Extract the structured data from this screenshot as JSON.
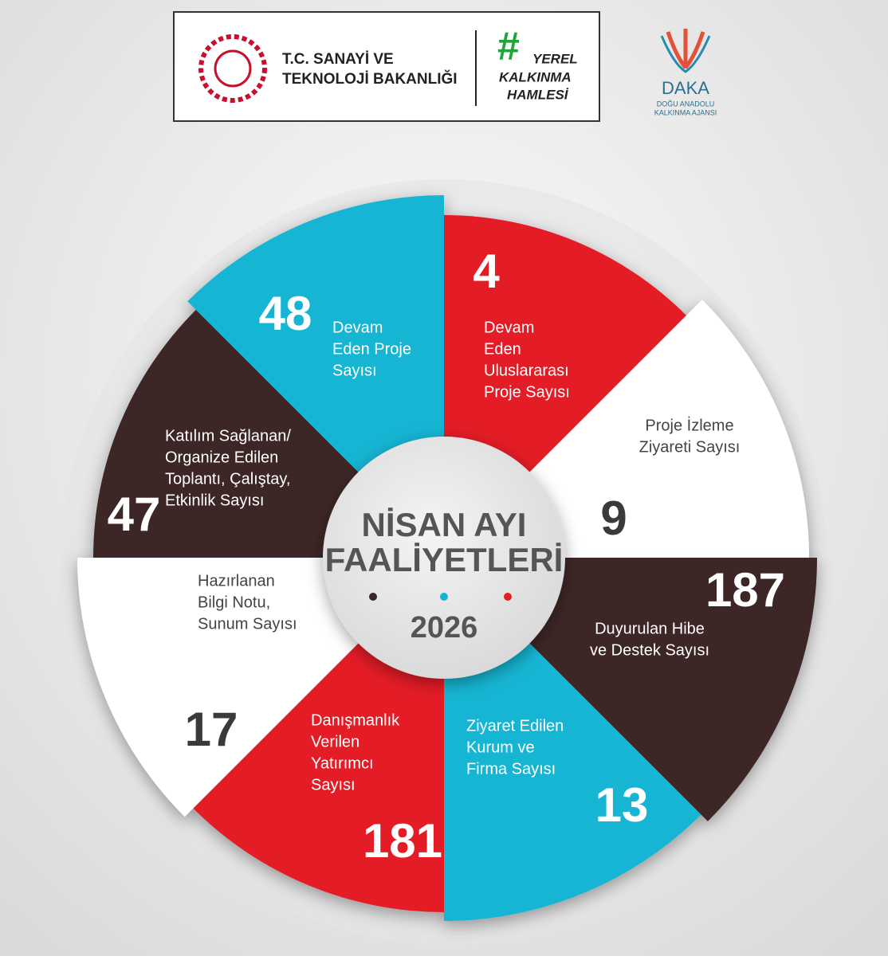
{
  "header": {
    "ministry": [
      "T.C. SANAYİ VE",
      "TEKNOLOJİ BAKANLIĞI"
    ],
    "campaign": [
      "#",
      "YEREL",
      "KALKINMA",
      "HAMLESİ"
    ],
    "agency": {
      "name": "DAKA",
      "full": [
        "DOĞU ANADOLU",
        "KALKINMA AJANSI"
      ]
    }
  },
  "center": {
    "title": [
      "NİSAN AYI",
      "FAALİYETLERİ"
    ],
    "year": "2026"
  },
  "segments": [
    {
      "value": "4",
      "label": [
        "Devam",
        "Eden",
        "Uluslararası",
        "Proje Sayısı"
      ]
    },
    {
      "value": "9",
      "label": [
        "Proje İzleme",
        "Ziyareti Sayısı"
      ]
    },
    {
      "value": "187",
      "label": [
        "Duyurulan Hibe",
        "ve Destek Sayısı"
      ]
    },
    {
      "value": "13",
      "label": [
        "Ziyaret Edilen",
        "Kurum ve",
        "Firma Sayısı"
      ]
    },
    {
      "value": "181",
      "label": [
        "Danışmanlık",
        "Verilen",
        "Yatırımcı",
        "Sayısı"
      ]
    },
    {
      "value": "17",
      "label": [
        "Hazırlanan",
        "Bilgi Notu,",
        "Sunum Sayısı"
      ]
    },
    {
      "value": "47",
      "label": [
        "Katılım Sağlanan/",
        "Organize Edilen",
        "Toplantı, Çalıştay,",
        "Etkinlik Sayısı"
      ]
    },
    {
      "value": "48",
      "label": [
        "Devam",
        "Eden Proje",
        "Sayısı"
      ]
    }
  ]
}
